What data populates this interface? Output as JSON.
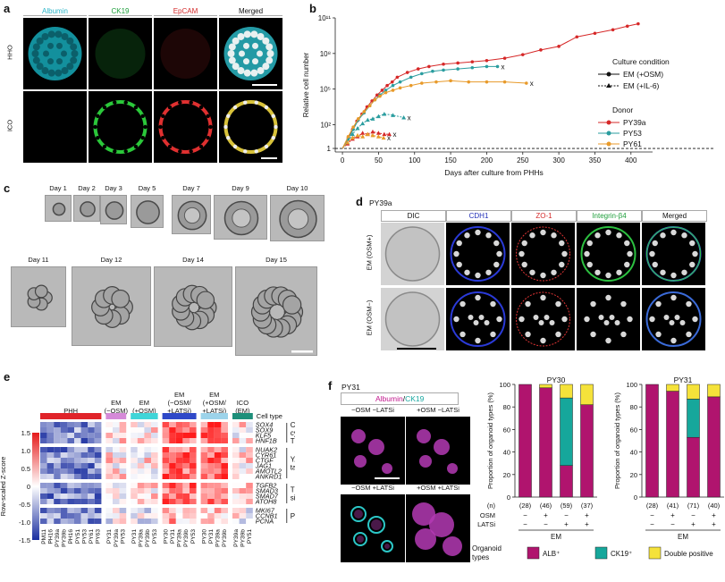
{
  "panel_a": {
    "label": "a",
    "columns": [
      {
        "label": "Albumin",
        "color": "#2bb5c8"
      },
      {
        "label": "CK19",
        "color": "#1d9e3a"
      },
      {
        "label": "EpCAM",
        "color": "#d42a2a"
      },
      {
        "label": "Merged",
        "color": "#111111"
      }
    ],
    "rows": [
      "HHO",
      "ICO"
    ]
  },
  "panel_b": {
    "label": "b",
    "legend_culture_title": "Culture condition",
    "legend_culture": [
      "EM (+OSM)",
      "EM (+IL-6)"
    ],
    "legend_donor_title": "Donor",
    "legend_donor": [
      {
        "name": "PY39a",
        "color": "#d62828"
      },
      {
        "name": "PY53",
        "color": "#2a9d9f"
      },
      {
        "name": "PY61",
        "color": "#e89a2a"
      }
    ],
    "end_marker": "x"
  },
  "chart_data": [
    {
      "type": "line",
      "panel": "b",
      "xlabel": "Days after culture from PHHs",
      "ylabel": "Relative cell number",
      "xlim": [
        -10,
        430
      ],
      "ylim_log10": [
        -0.3,
        11
      ],
      "x_ticks": [
        0,
        50,
        100,
        150,
        200,
        250,
        300,
        350,
        400
      ],
      "y_ticks": [
        {
          "label": "1",
          "log": 0
        },
        {
          "label": "10²",
          "log": 2
        },
        {
          "label": "10⁵",
          "log": 5
        },
        {
          "label": "10⁸",
          "log": 8
        },
        {
          "label": "10¹¹",
          "log": 11
        }
      ],
      "series": [
        {
          "name": "PY39a",
          "condition": "EM (+OSM)",
          "color": "#d62828",
          "x": [
            0,
            8,
            14,
            20,
            27,
            34,
            41,
            48,
            55,
            62,
            69,
            76,
            90,
            105,
            120,
            140,
            160,
            180,
            200,
            225,
            250,
            275,
            300,
            325,
            350,
            375,
            395,
            410
          ],
          "log_y": [
            0,
            0.9,
            1.6,
            2.3,
            2.9,
            3.5,
            4.0,
            4.5,
            4.9,
            5.3,
            5.6,
            6.0,
            6.4,
            6.7,
            6.9,
            7.1,
            7.2,
            7.3,
            7.4,
            7.6,
            7.9,
            8.3,
            8.6,
            9.4,
            9.7,
            10.0,
            10.3,
            10.5
          ],
          "ended": false
        },
        {
          "name": "PY53",
          "condition": "EM (+OSM)",
          "color": "#2a9d9f",
          "x": [
            0,
            8,
            15,
            22,
            30,
            38,
            45,
            52,
            60,
            70,
            80,
            95,
            110,
            125,
            140,
            160,
            180,
            200,
            215
          ],
          "log_y": [
            0,
            0.8,
            1.6,
            2.4,
            3.0,
            3.6,
            4.1,
            4.5,
            4.9,
            5.3,
            5.6,
            6.0,
            6.3,
            6.5,
            6.6,
            6.7,
            6.8,
            6.9,
            6.9
          ],
          "ended": true
        },
        {
          "name": "PY61",
          "condition": "EM (+OSM)",
          "color": "#e89a2a",
          "x": [
            0,
            8,
            15,
            22,
            30,
            38,
            45,
            52,
            60,
            70,
            80,
            95,
            110,
            130,
            150,
            175,
            200,
            225,
            255
          ],
          "log_y": [
            0,
            1.0,
            1.8,
            2.5,
            3.1,
            3.6,
            4.1,
            4.4,
            4.7,
            4.9,
            5.1,
            5.3,
            5.5,
            5.6,
            5.7,
            5.6,
            5.6,
            5.6,
            5.5
          ],
          "ended": true
        },
        {
          "name": "PY39a",
          "condition": "EM (+IL-6)",
          "color": "#d62828",
          "x": [
            0,
            7,
            14,
            21,
            28,
            35,
            42,
            50,
            58,
            65
          ],
          "log_y": [
            0,
            0.4,
            0.8,
            1.0,
            1.3,
            1.2,
            1.4,
            1.3,
            1.2,
            1.2
          ],
          "ended": true
        },
        {
          "name": "PY53",
          "condition": "EM (+IL-6)",
          "color": "#2a9d9f",
          "x": [
            0,
            7,
            14,
            21,
            28,
            35,
            42,
            50,
            58,
            70,
            85
          ],
          "log_y": [
            0,
            0.5,
            1.2,
            1.7,
            2.1,
            2.4,
            2.5,
            2.7,
            2.9,
            2.8,
            2.6
          ],
          "ended": true
        },
        {
          "name": "PY61",
          "condition": "EM (+IL-6)",
          "color": "#e89a2a",
          "x": [
            0,
            7,
            14,
            21,
            28,
            35,
            42,
            50,
            57
          ],
          "log_y": [
            0,
            0.5,
            0.9,
            1.1,
            1.0,
            1.2,
            1.1,
            1.0,
            0.9
          ],
          "ended": true
        }
      ],
      "baseline_log": 0
    },
    {
      "type": "heatmap",
      "panel": "e",
      "colorbar_label": "Row-scaled Z-score",
      "colorbar_ticks": [
        "1.5",
        "1.0",
        "0.5",
        "0",
        "-0.5",
        "-1.0",
        "-1.5"
      ],
      "legend_cell_type": "Cell type",
      "groups": [
        {
          "label": "PHH",
          "color": "#e0242a",
          "columns": [
            "PM11",
            "PH16",
            "PY39a",
            "PY39b",
            "PH16",
            "PY51",
            "PY53",
            "PY61",
            "PY63"
          ]
        },
        {
          "label": "EM (−OSM)",
          "color": "#d58ad8",
          "columns": [
            "PY31",
            "PY39a",
            "PY53"
          ]
        },
        {
          "label": "EM (+OSM)",
          "color": "#3fd5d8",
          "columns": [
            "PY31",
            "PY39a",
            "PY39b",
            "PY53"
          ]
        },
        {
          "label": "EM (−OSM/ +LATSi)",
          "color": "#2f49c8",
          "columns": [
            "PY30",
            "PY31",
            "PY39a",
            "PY39b",
            "PY53"
          ]
        },
        {
          "label": "EM (+OSM/ +LATSi)",
          "color": "#9cd3ea",
          "columns": [
            "PY30",
            "PY31",
            "PY39a",
            "PY39b"
          ]
        },
        {
          "label": "ICO (EM)",
          "color": "#1e8f7a",
          "columns": [
            "PY39a",
            "PY39b",
            "PY51"
          ]
        }
      ],
      "gene_blocks": [
        {
          "label": "Cholangio- cyte TF",
          "genes": [
            "SOX4",
            "SOX9",
            "KLF5",
            "HNF1B"
          ]
        },
        {
          "label": "YAP targets",
          "genes": [
            "NUAK2",
            "CYR61",
            "CTGF",
            "JAG1",
            "AMOTL2",
            "ANKRD1"
          ]
        },
        {
          "label": "TGFβ signalling",
          "genes": [
            "TGFB2",
            "SMAD3",
            "SMAD7",
            "ATOH8"
          ]
        },
        {
          "label": "Proliferation",
          "genes": [
            "MKI67",
            "CCNB1",
            "PCNA"
          ]
        }
      ]
    },
    {
      "type": "bar",
      "panel": "f",
      "stacked": true,
      "ylabel": "Proportion of organoid types (%)",
      "ylim": [
        0,
        100
      ],
      "y_ticks": [
        0,
        20,
        40,
        60,
        80,
        100
      ],
      "legend_title": "Organoid types",
      "legend": [
        {
          "label": "ALB⁺",
          "color": "#b0146e"
        },
        {
          "label": "CK19⁺",
          "color": "#16a79b"
        },
        {
          "label": "Double positive",
          "color": "#f5e23a"
        }
      ],
      "row_labels": {
        "n": "(n)",
        "osm": "OSM",
        "latsi": "LATSi",
        "em": "EM"
      },
      "osm": [
        "−",
        "+",
        "−",
        "+"
      ],
      "latsi": [
        "−",
        "−",
        "+",
        "+"
      ],
      "charts": [
        {
          "title": "PY30",
          "n": [
            "(28)",
            "(46)",
            "(59)",
            "(37)"
          ],
          "alb": [
            100,
            97,
            28,
            82
          ],
          "ck19": [
            0,
            0,
            60,
            0
          ],
          "double": [
            0,
            3,
            12,
            18
          ]
        },
        {
          "title": "PY31",
          "n": [
            "(28)",
            "(41)",
            "(71)",
            "(40)"
          ],
          "alb": [
            100,
            94,
            53,
            89
          ],
          "ck19": [
            0,
            0,
            34,
            0
          ],
          "double": [
            0,
            6,
            13,
            11
          ]
        }
      ]
    }
  ],
  "panel_c": {
    "label": "c",
    "days_top": [
      "Day 1",
      "Day 2",
      "Day 3",
      "Day 5",
      "Day 7",
      "Day 9",
      "Day 10"
    ],
    "days_bottom": [
      "Day 11",
      "Day 12",
      "Day 14",
      "Day 15"
    ]
  },
  "panel_d": {
    "label": "d",
    "donor": "PY39a",
    "columns": [
      {
        "label": "DIC",
        "color": "#111111"
      },
      {
        "label": "CDH1",
        "color": "#2230b8"
      },
      {
        "label": "ZO-1",
        "color": "#d42a2a"
      },
      {
        "label": "Integrin-β4",
        "color": "#1d9e3a"
      },
      {
        "label": "Merged",
        "color": "#111111"
      }
    ],
    "rows": [
      "EM (OSM+)",
      "EM (OSM−)"
    ]
  },
  "panel_e": {
    "label": "e"
  },
  "panel_f": {
    "label": "f",
    "donor": "PY31",
    "stain_albumin": "Albumin",
    "stain_sep": "/",
    "stain_ck19": "CK19",
    "conditions": [
      "−OSM −LATSi",
      "+OSM −LATSi",
      "−OSM +LATSi",
      "+OSM +LATSi"
    ]
  }
}
